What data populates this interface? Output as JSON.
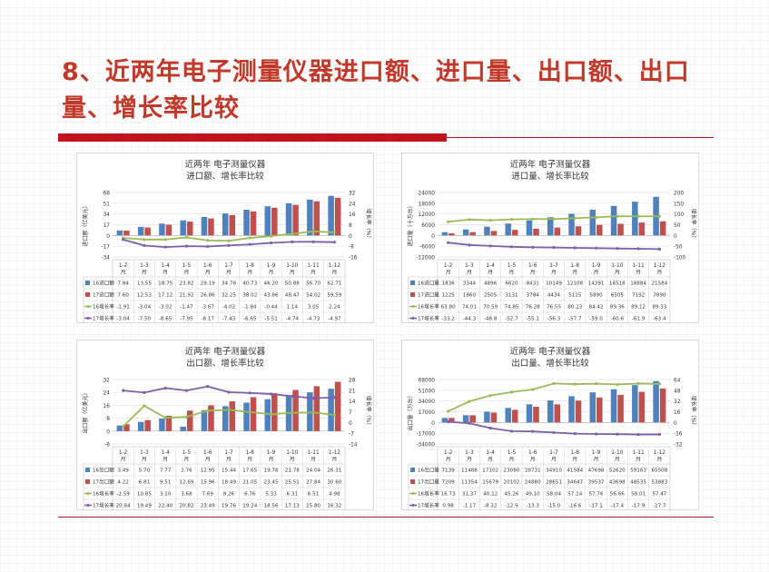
{
  "slide_title": "8、近两年电子测量仪器进口额、进口量、出口额、出口量、增长率比较",
  "colors": {
    "s16": "#4f81bd",
    "s17": "#c0504d",
    "g16": "#9bbb59",
    "g17": "#7f5fa8"
  },
  "chart_data": [
    {
      "type": "bar",
      "title": "近两年 电子测量仪器",
      "subtitle": "进口额、增长率比较",
      "ylabel": "进口额（亿美元）",
      "y2label": "增长率（%）",
      "ylim": [
        -34,
        68
      ],
      "yticks": [
        68,
        51,
        34,
        17,
        0,
        -17,
        -34
      ],
      "y2lim": [
        -16,
        32
      ],
      "y2ticks": [
        32,
        24,
        16,
        8,
        0,
        -8,
        -16
      ],
      "categories": [
        "1-2月",
        "1-3月",
        "1-4月",
        "1-5月",
        "1-6月",
        "1-7月",
        "1-8月",
        "1-9月",
        "1-10月",
        "1-11月",
        "1-12月"
      ],
      "bars": [
        {
          "name": "16进口额",
          "values": [
            7.84,
            13.55,
            18.75,
            23.82,
            29.19,
            34.78,
            40.73,
            46.2,
            50.88,
            56.7,
            62.71
          ],
          "labels": [
            "7.84",
            "13.55",
            "18.75",
            "23.82",
            "29.19",
            "34.78",
            "40.73",
            "46.20",
            "50.88",
            "56.70",
            "62.71"
          ]
        },
        {
          "name": "17进口额",
          "values": [
            7.6,
            12.53,
            17.12,
            21.92,
            26.86,
            32.25,
            38.02,
            43.86,
            48.47,
            54.02,
            59.59
          ],
          "labels": [
            "7.60",
            "12.53",
            "17.12",
            "21.92",
            "26.86",
            "32.25",
            "38.02",
            "43.86",
            "48.47",
            "54.02",
            "59.59"
          ]
        }
      ],
      "lines": [
        {
          "name": "16增长率",
          "values": [
            -1.91,
            -3.04,
            -3.02,
            -1.47,
            -3.67,
            -4.02,
            -1.84,
            -0.44,
            1.14,
            3.05,
            2.24
          ],
          "labels": [
            "-1.91",
            "-3.04",
            "-3.02",
            "-1.47",
            "-3.67",
            "-4.02",
            "-1.84",
            "-0.44",
            "1.14",
            "3.05",
            "2.24"
          ]
        },
        {
          "name": "17增长率",
          "values": [
            -3.04,
            -7.5,
            -8.65,
            -7.95,
            -8.17,
            -7.43,
            -6.65,
            -5.51,
            -4.74,
            -4.73,
            -4.97
          ],
          "labels": [
            "-3.04",
            "-7.50",
            "-8.65",
            "-7.95",
            "-8.17",
            "-7.43",
            "-6.65",
            "-5.51",
            "-4.74",
            "-4.73",
            "-4.97"
          ]
        }
      ]
    },
    {
      "type": "bar",
      "title": "近两年 电子测量仪器",
      "subtitle": "进口量、增长率比较",
      "ylabel": "进口量（十万台）",
      "y2label": "增长率（%）",
      "ylim": [
        -12000,
        24000
      ],
      "yticks": [
        24000,
        18000,
        12000,
        6000,
        0,
        -6000,
        -12000
      ],
      "y2lim": [
        -100,
        200
      ],
      "y2ticks": [
        200,
        150,
        100,
        50,
        0,
        -50,
        -100
      ],
      "categories": [
        "1-2月",
        "1-3月",
        "1-4月",
        "1-5月",
        "1-6月",
        "1-7月",
        "1-8月",
        "1-9月",
        "1-10月",
        "1-11月",
        "1-12月"
      ],
      "bars": [
        {
          "name": "16进口量",
          "values": [
            1836,
            3344,
            4896,
            6620,
            8431,
            10149,
            12108,
            14391,
            16518,
            18884,
            21584
          ],
          "labels": [
            "1836",
            "3344",
            "4896",
            "6620",
            "8431",
            "10149",
            "12108",
            "14391",
            "16518",
            "18884",
            "21584"
          ]
        },
        {
          "name": "17进口量",
          "values": [
            1225,
            1860,
            2505,
            3131,
            3784,
            4434,
            5115,
            5890,
            6505,
            7192,
            7890
          ],
          "labels": [
            "1225",
            "1860",
            "2505",
            "3131",
            "3784",
            "4434",
            "5115",
            "5890",
            "6505",
            "7192",
            "7890"
          ]
        }
      ],
      "lines": [
        {
          "name": "16增长率",
          "values": [
            63.8,
            74.01,
            70.59,
            74.85,
            76.28,
            76.55,
            80.23,
            84.42,
            89.36,
            89.12,
            89.33
          ],
          "labels": [
            "63.80",
            "74.01",
            "70.59",
            "74.85",
            "76.28",
            "76.55",
            "80.23",
            "84.42",
            "89.36",
            "89.12",
            "89.33"
          ]
        },
        {
          "name": "17增长率",
          "values": [
            -33.2,
            -44.3,
            -48.8,
            -52.7,
            -55.1,
            -56.3,
            -57.7,
            -59.0,
            -60.6,
            -61.9,
            -63.4
          ],
          "labels": [
            "-33.2",
            "-44.3",
            "-48.8",
            "-52.7",
            "-55.1",
            "-56.3",
            "-57.7",
            "-59.0",
            "-60.6",
            "-61.9",
            "-63.4"
          ]
        }
      ]
    },
    {
      "type": "bar",
      "title": "近两年 电子测量仪器",
      "subtitle": "出口额、增长率比较",
      "ylabel": "出口额（亿美元）",
      "y2label": "增长率（%）",
      "ylim": [
        -8,
        32
      ],
      "yticks": [
        32,
        24,
        16,
        8,
        0,
        -8
      ],
      "y2lim": [
        -14,
        28
      ],
      "y2ticks": [
        28,
        21,
        14,
        7,
        0,
        -7,
        -14
      ],
      "categories": [
        "1-2月",
        "1-3月",
        "1-4月",
        "1-5月",
        "1-6月",
        "1-7月",
        "1-8月",
        "1-9月",
        "1-10月",
        "1-11月",
        "1-12月"
      ],
      "bars": [
        {
          "name": "16出口额",
          "values": [
            3.49,
            5.7,
            7.77,
            2.76,
            12.95,
            15.44,
            17.65,
            19.78,
            21.78,
            24.04,
            26.31
          ],
          "labels": [
            "3.49",
            "5.70",
            "7.77",
            "2.76",
            "12.95",
            "15.44",
            "17.65",
            "19.78",
            "21.78",
            "24.04",
            "26.31"
          ]
        },
        {
          "name": "17出口额",
          "values": [
            4.22,
            6.81,
            9.51,
            12.69,
            15.96,
            18.49,
            21.05,
            23.45,
            25.51,
            27.84,
            30.6
          ],
          "labels": [
            "4.22",
            "6.81",
            "9.51",
            "12.69",
            "15.96",
            "18.49",
            "21.05",
            "23.45",
            "25.51",
            "27.84",
            "30.60"
          ]
        }
      ],
      "lines": [
        {
          "name": "16增长率",
          "values": [
            -2.59,
            10.85,
            3.1,
            3.68,
            7.69,
            8.26,
            6.76,
            5.33,
            6.31,
            6.51,
            4.98
          ],
          "labels": [
            "-2.59",
            "10.85",
            "3.10",
            "3.68",
            "7.69",
            "8.26",
            "6.76",
            "5.33",
            "6.31",
            "6.51",
            "4.98"
          ]
        },
        {
          "name": "17增长率",
          "values": [
            20.84,
            19.49,
            22.4,
            20.82,
            23.49,
            19.76,
            19.24,
            18.56,
            17.13,
            15.8,
            16.32
          ],
          "labels": [
            "20.84",
            "19.49",
            "22.40",
            "20.82",
            "23.49",
            "19.76",
            "19.24",
            "18.56",
            "17.13",
            "15.80",
            "16.32"
          ]
        }
      ]
    },
    {
      "type": "bar",
      "title": "近两年 电子测量仪器",
      "subtitle": "出口量、增长率比较",
      "ylabel": "出口量（万台）",
      "y2label": "增长率（%）",
      "ylim": [
        -34000,
        68000
      ],
      "yticks": [
        68000,
        51000,
        34000,
        17000,
        0,
        -17000,
        -34000
      ],
      "y2lim": [
        -32,
        64
      ],
      "y2ticks": [
        64,
        48,
        32,
        16,
        0,
        -16,
        -32
      ],
      "categories": [
        "1-2月",
        "1-3月",
        "1-4月",
        "1-5月",
        "1-6月",
        "1-7月",
        "1-8月",
        "1-9月",
        "1-10月",
        "1-11月",
        "1-12月"
      ],
      "bars": [
        {
          "name": "16出口量",
          "values": [
            7139,
            11488,
            17102,
            23080,
            28731,
            34910,
            41584,
            47698,
            52620,
            59163,
            65508
          ],
          "labels": [
            "7139",
            "11488",
            "17102",
            "23080",
            "28731",
            "34910",
            "41584",
            "47698",
            "52620",
            "59163",
            "65508"
          ]
        },
        {
          "name": "17出口量",
          "values": [
            7209,
            11354,
            15679,
            20102,
            24880,
            28651,
            34647,
            39537,
            43698,
            48535,
            53883
          ],
          "labels": [
            "7209",
            "11354",
            "15679",
            "20102",
            "24880",
            "28651",
            "34647",
            "39537",
            "43698",
            "48535",
            "53883"
          ]
        }
      ],
      "lines": [
        {
          "name": "16增长率",
          "values": [
            16.73,
            31.37,
            40.12,
            45.26,
            49.1,
            58.04,
            57.14,
            57.76,
            56.66,
            58.01,
            57.47
          ],
          "labels": [
            "16.73",
            "31.37",
            "40.12",
            "45.26",
            "49.10",
            "58.04",
            "57.14",
            "57.76",
            "56.66",
            "58.01",
            "57.47"
          ]
        },
        {
          "name": "17增长率",
          "values": [
            0.98,
            -1.17,
            -8.32,
            -12.9,
            -13.3,
            -15.0,
            -16.6,
            -17.1,
            -17.4,
            -17.9,
            -17.7
          ],
          "labels": [
            "0.98",
            "-1.17",
            "-8.32",
            "-12.9",
            "-13.3",
            "-15.0",
            "-16.6",
            "-17.1",
            "-17.4",
            "-17.9",
            "-17.7"
          ]
        }
      ]
    }
  ]
}
